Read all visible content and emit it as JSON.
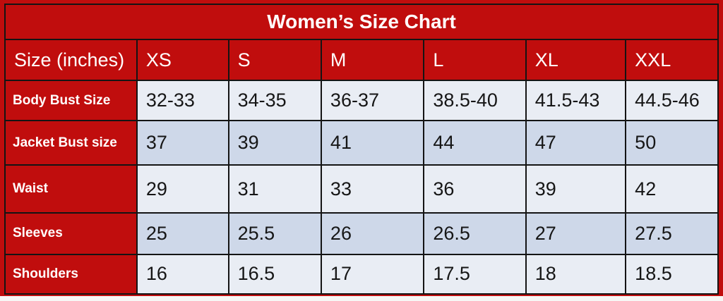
{
  "colors": {
    "red": "#c00d0d",
    "row_light": "#e9edf4",
    "row_alt": "#ced8e9",
    "grid": "#141414",
    "header_text": "#ffffff",
    "cell_text": "#161616"
  },
  "chart_data": {
    "type": "table",
    "title": "Women’s Size Chart",
    "columns": [
      "Size (inches)",
      "XS",
      "S",
      "M",
      "L",
      "XL",
      "XXL"
    ],
    "column_width_pct": [
      18.5,
      12.85,
      13.0,
      14.4,
      14.3,
      14.0,
      12.95
    ],
    "rows": [
      [
        "Body Bust Size",
        "32-33",
        "34-35",
        "36-37",
        "38.5-40",
        "41.5-43",
        "44.5-46"
      ],
      [
        "Jacket Bust size",
        "37",
        "39",
        "41",
        "44",
        "47",
        "50"
      ],
      [
        "Waist",
        "29",
        "31",
        "33",
        "36",
        "39",
        "42"
      ],
      [
        "Sleeves",
        "25",
        "25.5",
        "26",
        "26.5",
        "27",
        "27.5"
      ],
      [
        "Shoulders",
        "16",
        "16.5",
        "17",
        "17.5",
        "18",
        "18.5"
      ]
    ]
  }
}
